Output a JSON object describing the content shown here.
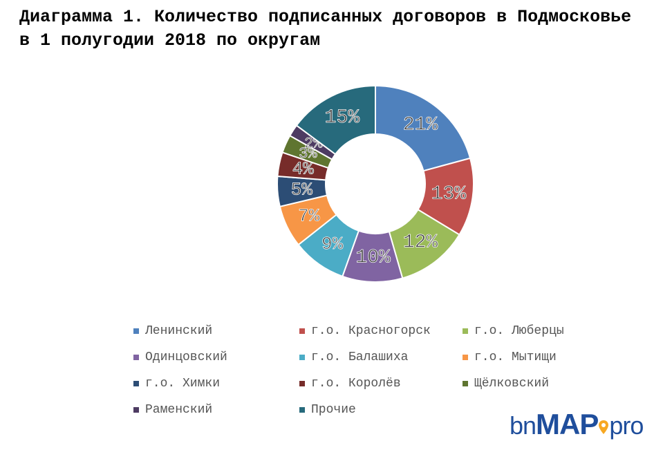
{
  "title": "Диаграмма 1. Количество подписанных договоров в Подмосковье в 1 полугодии 2018 по округам",
  "chart_data": {
    "type": "pie",
    "variant": "donut",
    "title": "Диаграмма 1. Количество подписанных договоров в Подмосковье в 1 полугодии 2018 по округам",
    "legend_position": "bottom",
    "slices": [
      {
        "name": "Ленинский",
        "value": 21,
        "label": "21%",
        "color": "#4f81bd"
      },
      {
        "name": "г.о. Красногорск",
        "value": 13,
        "label": "13%",
        "color": "#c0504d"
      },
      {
        "name": "г.о. Люберцы",
        "value": 12,
        "label": "12%",
        "color": "#9bbb59"
      },
      {
        "name": "Одинцовский",
        "value": 10,
        "label": "10%",
        "color": "#8064a2"
      },
      {
        "name": "г.о. Балашиха",
        "value": 9,
        "label": "9%",
        "color": "#4bacc6"
      },
      {
        "name": "г.о. Мытищи",
        "value": 7,
        "label": "7%",
        "color": "#f79646"
      },
      {
        "name": "г.о. Химки",
        "value": 5,
        "label": "5%",
        "color": "#2c4d75"
      },
      {
        "name": "г.о. Королёв",
        "value": 4,
        "label": "4%",
        "color": "#772c2a"
      },
      {
        "name": "Щёлковский",
        "value": 3,
        "label": "3%",
        "color": "#5f7530"
      },
      {
        "name": "Раменский",
        "value": 2,
        "label": "2%",
        "color": "#4d3b62"
      },
      {
        "name": "Прочие",
        "value": 15,
        "label": "15%",
        "color": "#276a7c"
      }
    ]
  },
  "logo": {
    "part1": "bn",
    "part2": "MAP",
    "part3": "pro",
    "pin_color": "#f7a823",
    "icon": "map-pin-icon"
  }
}
